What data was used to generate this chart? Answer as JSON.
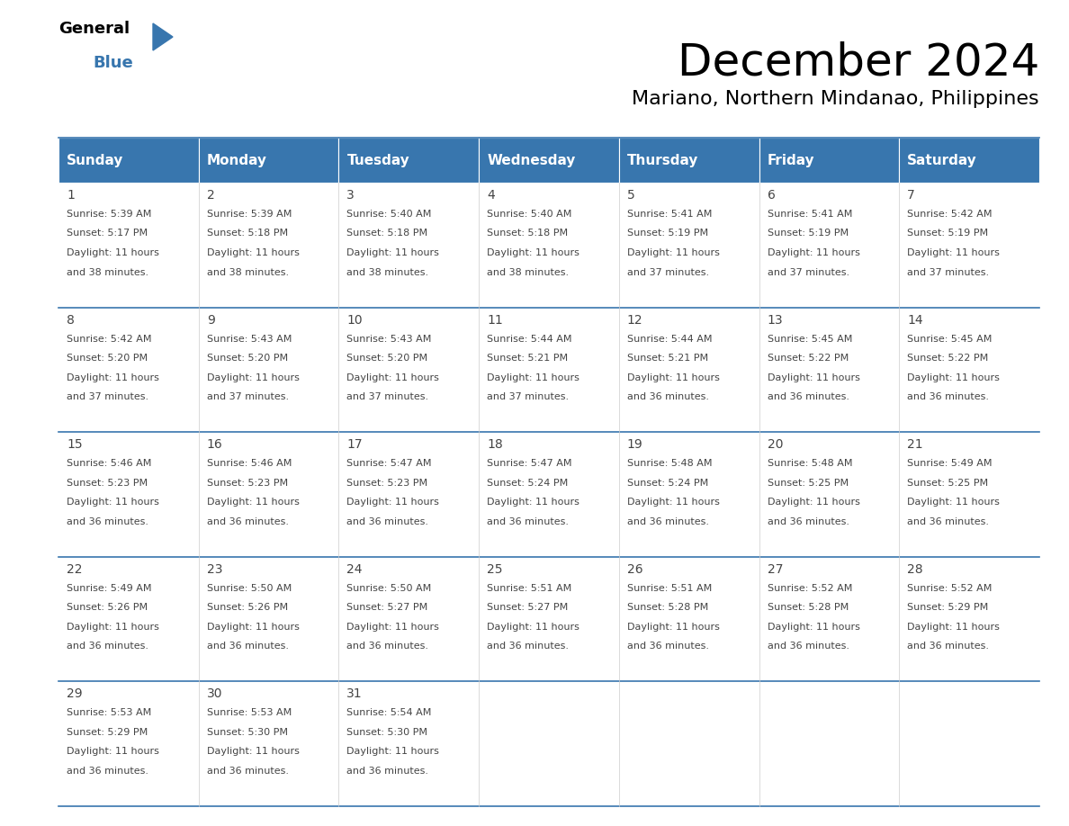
{
  "title": "December 2024",
  "subtitle": "Mariano, Northern Mindanao, Philippines",
  "header_bg_color": "#3876ae",
  "header_text_color": "#ffffff",
  "cell_bg": "#ffffff",
  "days_of_week": [
    "Sunday",
    "Monday",
    "Tuesday",
    "Wednesday",
    "Thursday",
    "Friday",
    "Saturday"
  ],
  "calendar": [
    [
      {
        "day": 1,
        "sunrise": "5:39 AM",
        "sunset": "5:17 PM",
        "daylight_hrs": 11,
        "daylight_min": 38
      },
      {
        "day": 2,
        "sunrise": "5:39 AM",
        "sunset": "5:18 PM",
        "daylight_hrs": 11,
        "daylight_min": 38
      },
      {
        "day": 3,
        "sunrise": "5:40 AM",
        "sunset": "5:18 PM",
        "daylight_hrs": 11,
        "daylight_min": 38
      },
      {
        "day": 4,
        "sunrise": "5:40 AM",
        "sunset": "5:18 PM",
        "daylight_hrs": 11,
        "daylight_min": 38
      },
      {
        "day": 5,
        "sunrise": "5:41 AM",
        "sunset": "5:19 PM",
        "daylight_hrs": 11,
        "daylight_min": 37
      },
      {
        "day": 6,
        "sunrise": "5:41 AM",
        "sunset": "5:19 PM",
        "daylight_hrs": 11,
        "daylight_min": 37
      },
      {
        "day": 7,
        "sunrise": "5:42 AM",
        "sunset": "5:19 PM",
        "daylight_hrs": 11,
        "daylight_min": 37
      }
    ],
    [
      {
        "day": 8,
        "sunrise": "5:42 AM",
        "sunset": "5:20 PM",
        "daylight_hrs": 11,
        "daylight_min": 37
      },
      {
        "day": 9,
        "sunrise": "5:43 AM",
        "sunset": "5:20 PM",
        "daylight_hrs": 11,
        "daylight_min": 37
      },
      {
        "day": 10,
        "sunrise": "5:43 AM",
        "sunset": "5:20 PM",
        "daylight_hrs": 11,
        "daylight_min": 37
      },
      {
        "day": 11,
        "sunrise": "5:44 AM",
        "sunset": "5:21 PM",
        "daylight_hrs": 11,
        "daylight_min": 37
      },
      {
        "day": 12,
        "sunrise": "5:44 AM",
        "sunset": "5:21 PM",
        "daylight_hrs": 11,
        "daylight_min": 36
      },
      {
        "day": 13,
        "sunrise": "5:45 AM",
        "sunset": "5:22 PM",
        "daylight_hrs": 11,
        "daylight_min": 36
      },
      {
        "day": 14,
        "sunrise": "5:45 AM",
        "sunset": "5:22 PM",
        "daylight_hrs": 11,
        "daylight_min": 36
      }
    ],
    [
      {
        "day": 15,
        "sunrise": "5:46 AM",
        "sunset": "5:23 PM",
        "daylight_hrs": 11,
        "daylight_min": 36
      },
      {
        "day": 16,
        "sunrise": "5:46 AM",
        "sunset": "5:23 PM",
        "daylight_hrs": 11,
        "daylight_min": 36
      },
      {
        "day": 17,
        "sunrise": "5:47 AM",
        "sunset": "5:23 PM",
        "daylight_hrs": 11,
        "daylight_min": 36
      },
      {
        "day": 18,
        "sunrise": "5:47 AM",
        "sunset": "5:24 PM",
        "daylight_hrs": 11,
        "daylight_min": 36
      },
      {
        "day": 19,
        "sunrise": "5:48 AM",
        "sunset": "5:24 PM",
        "daylight_hrs": 11,
        "daylight_min": 36
      },
      {
        "day": 20,
        "sunrise": "5:48 AM",
        "sunset": "5:25 PM",
        "daylight_hrs": 11,
        "daylight_min": 36
      },
      {
        "day": 21,
        "sunrise": "5:49 AM",
        "sunset": "5:25 PM",
        "daylight_hrs": 11,
        "daylight_min": 36
      }
    ],
    [
      {
        "day": 22,
        "sunrise": "5:49 AM",
        "sunset": "5:26 PM",
        "daylight_hrs": 11,
        "daylight_min": 36
      },
      {
        "day": 23,
        "sunrise": "5:50 AM",
        "sunset": "5:26 PM",
        "daylight_hrs": 11,
        "daylight_min": 36
      },
      {
        "day": 24,
        "sunrise": "5:50 AM",
        "sunset": "5:27 PM",
        "daylight_hrs": 11,
        "daylight_min": 36
      },
      {
        "day": 25,
        "sunrise": "5:51 AM",
        "sunset": "5:27 PM",
        "daylight_hrs": 11,
        "daylight_min": 36
      },
      {
        "day": 26,
        "sunrise": "5:51 AM",
        "sunset": "5:28 PM",
        "daylight_hrs": 11,
        "daylight_min": 36
      },
      {
        "day": 27,
        "sunrise": "5:52 AM",
        "sunset": "5:28 PM",
        "daylight_hrs": 11,
        "daylight_min": 36
      },
      {
        "day": 28,
        "sunrise": "5:52 AM",
        "sunset": "5:29 PM",
        "daylight_hrs": 11,
        "daylight_min": 36
      }
    ],
    [
      {
        "day": 29,
        "sunrise": "5:53 AM",
        "sunset": "5:29 PM",
        "daylight_hrs": 11,
        "daylight_min": 36
      },
      {
        "day": 30,
        "sunrise": "5:53 AM",
        "sunset": "5:30 PM",
        "daylight_hrs": 11,
        "daylight_min": 36
      },
      {
        "day": 31,
        "sunrise": "5:54 AM",
        "sunset": "5:30 PM",
        "daylight_hrs": 11,
        "daylight_min": 36
      },
      null,
      null,
      null,
      null
    ]
  ],
  "logo_triangle_color": "#3876ae",
  "divider_color": "#3876ae",
  "text_color": "#444444",
  "title_fontsize": 36,
  "subtitle_fontsize": 16,
  "header_fontsize": 11,
  "day_num_fontsize": 10,
  "cell_fontsize": 8
}
